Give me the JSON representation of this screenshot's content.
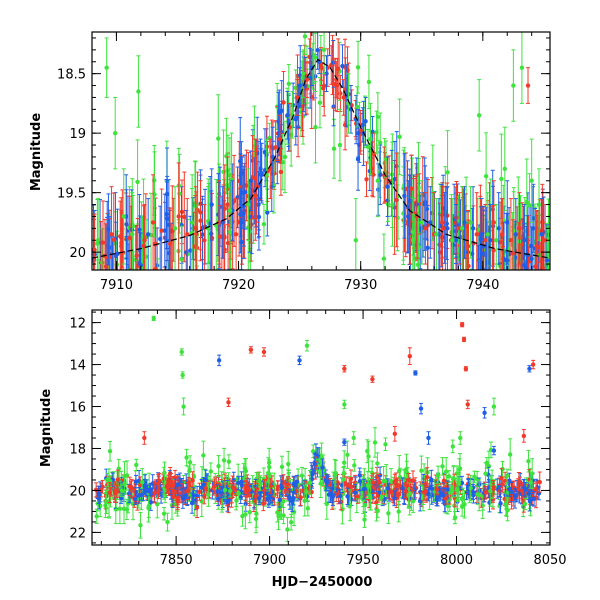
{
  "chart_data": [
    {
      "type": "scatter",
      "xlim": [
        7908,
        7945.5
      ],
      "ylim": [
        20.15,
        18.15
      ],
      "y_inverted": true,
      "xlabel": "",
      "ylabel": "Magnitude",
      "xticks": [
        7910,
        7920,
        7930,
        7940
      ],
      "yticks": [
        18.5,
        19,
        19.5,
        20
      ],
      "ytick_labels": [
        "18.5",
        "19",
        "19.5",
        "20"
      ],
      "grid": false,
      "colors": {
        "red": "#f23a2a",
        "blue": "#1f5fe8",
        "green": "#3ee33e",
        "model": "#000000"
      },
      "model_curve": {
        "x": [
          7908,
          7912,
          7916,
          7919,
          7921,
          7923,
          7924.5,
          7925.5,
          7926.5,
          7927.5,
          7928.5,
          7930,
          7932,
          7934,
          7937,
          7941,
          7945.5
        ],
        "y": [
          20.05,
          19.97,
          19.86,
          19.72,
          19.55,
          19.2,
          18.85,
          18.55,
          18.38,
          18.45,
          18.62,
          18.95,
          19.35,
          19.65,
          19.85,
          19.97,
          20.05
        ]
      },
      "series": [
        {
          "color": "red",
          "x": [
            7908.2,
            7908.9,
            7909.6,
            7910.4,
            7911.1,
            7912.3,
            7913.0,
            7913.7,
            7914.4,
            7915.1,
            7915.8,
            7916.5,
            7917.2,
            7918.4,
            7919.1,
            7919.8,
            7921.5,
            7922.6,
            7923.4,
            7924.2,
            7924.8,
            7925.6,
            7926.8,
            7928.0,
            7928.6,
            7934.6,
            7935.3,
            7936.0,
            7936.7,
            7937.4,
            7938.1,
            7938.8,
            7939.5,
            7940.2,
            7940.9,
            7941.6,
            7942.3,
            7943.0,
            7943.7,
            7944.4,
            7945.1
          ],
          "y": [
            19.98,
            19.92,
            19.85,
            19.95,
            19.88,
            19.9,
            19.75,
            19.82,
            19.93,
            19.7,
            19.85,
            19.8,
            19.9,
            19.75,
            19.6,
            19.85,
            19.45,
            19.3,
            19.05,
            18.95,
            18.7,
            18.55,
            18.45,
            18.55,
            18.7,
            19.7,
            19.8,
            19.85,
            19.75,
            19.9,
            19.8,
            19.95,
            19.85,
            19.9,
            19.75,
            19.85,
            19.9,
            19.8,
            18.6,
            19.95,
            19.9
          ],
          "err": [
            0.3,
            0.35,
            0.4,
            0.3,
            0.35,
            0.3,
            0.4,
            0.35,
            0.3,
            0.45,
            0.3,
            0.35,
            0.3,
            0.35,
            0.4,
            0.3,
            0.3,
            0.25,
            0.2,
            0.2,
            0.15,
            0.15,
            0.15,
            0.15,
            0.15,
            0.35,
            0.3,
            0.35,
            0.3,
            0.35,
            0.3,
            0.3,
            0.35,
            0.3,
            0.35,
            0.3,
            0.35,
            0.3,
            0.15,
            0.3,
            0.3
          ]
        },
        {
          "color": "blue",
          "x": [
            7910.8,
            7912.6,
            7917.8,
            7918.7,
            7919.5,
            7920.3,
            7921.0,
            7921.8,
            7922.8,
            7924.0,
            7925.0,
            7926.0,
            7926.6,
            7927.2,
            7929.2,
            7929.8,
            7930.4,
            7931.6,
            7932.2,
            7933.9,
            7935.0,
            7935.7,
            7936.4,
            7937.1,
            7937.8,
            7938.5,
            7939.2,
            7939.9,
            7940.6,
            7941.3,
            7942.0,
            7942.7,
            7943.4,
            7944.1,
            7944.8
          ],
          "y": [
            19.7,
            19.85,
            19.6,
            19.75,
            19.65,
            19.5,
            19.4,
            19.3,
            19.2,
            18.85,
            18.6,
            18.45,
            18.4,
            18.5,
            18.8,
            19.0,
            18.9,
            19.35,
            19.45,
            19.7,
            19.8,
            19.75,
            19.85,
            19.8,
            19.9,
            19.75,
            19.8,
            19.85,
            19.9,
            19.8,
            19.75,
            19.85,
            19.9,
            19.8,
            19.85
          ],
          "err": [
            0.35,
            0.3,
            0.3,
            0.3,
            0.25,
            0.3,
            0.25,
            0.25,
            0.25,
            0.2,
            0.15,
            0.15,
            0.1,
            0.15,
            0.2,
            0.2,
            0.2,
            0.25,
            0.25,
            0.3,
            0.3,
            0.3,
            0.3,
            0.35,
            0.3,
            0.3,
            0.35,
            0.3,
            0.3,
            0.3,
            0.35,
            0.3,
            0.3,
            0.35,
            0.3
          ]
        },
        {
          "color": "green",
          "x": [
            7908.5,
            7909.2,
            7909.9,
            7910.6,
            7911.3,
            7911.8,
            7914.8,
            7916.2,
            7917.5,
            7919.3,
            7920.8,
            7922.3,
            7923.8,
            7925.3,
            7926.3,
            7927.0,
            7928.3,
            7929.0,
            7929.6,
            7930.8,
            7931.4,
            7932.6,
            7934.3,
            7935.0,
            7936.2,
            7937.5,
            7938.3,
            7939.0,
            7939.7,
            7940.4,
            7941.1,
            7941.8,
            7942.5,
            7943.2,
            7944.0,
            7944.6
          ],
          "y": [
            19.9,
            18.45,
            19.0,
            19.7,
            19.85,
            18.65,
            19.8,
            19.75,
            19.8,
            19.65,
            19.6,
            19.35,
            19.2,
            18.5,
            18.95,
            18.3,
            19.1,
            18.75,
            19.9,
            19.05,
            19.4,
            19.6,
            19.9,
            19.75,
            19.85,
            19.9,
            19.8,
            19.75,
            18.85,
            19.85,
            19.9,
            19.3,
            18.6,
            18.45,
            19.4,
            19.6
          ],
          "err": [
            0.35,
            0.25,
            0.3,
            0.4,
            0.35,
            0.3,
            0.35,
            0.4,
            0.35,
            0.35,
            0.3,
            0.3,
            0.3,
            0.2,
            0.3,
            0.2,
            0.3,
            0.25,
            0.35,
            0.3,
            0.3,
            0.35,
            0.35,
            0.35,
            0.3,
            0.35,
            0.35,
            0.3,
            0.3,
            0.35,
            0.3,
            0.35,
            0.3,
            0.3,
            0.35,
            0.3
          ]
        }
      ]
    },
    {
      "type": "scatter",
      "xlim": [
        7805,
        8050
      ],
      "ylim": [
        22.6,
        11.4
      ],
      "y_inverted": true,
      "xlabel": "HJD−2450000",
      "ylabel": "Magnitude",
      "xticks": [
        7850,
        7900,
        7950,
        8000,
        8050
      ],
      "yticks": [
        12,
        14,
        16,
        18,
        20,
        22
      ],
      "grid": false,
      "baseline_magnitude": 20,
      "series": [
        {
          "color": "red",
          "x": [
            7833,
            7878,
            7890,
            7897,
            7940,
            7955,
            7967,
            7975,
            8003,
            8004,
            8005,
            8006,
            8036,
            8041
          ],
          "y": [
            17.5,
            15.8,
            13.3,
            13.4,
            14.2,
            14.7,
            17.3,
            13.6,
            12.1,
            12.8,
            14.2,
            15.9,
            17.4,
            14.0
          ],
          "err": [
            0.3,
            0.2,
            0.15,
            0.2,
            0.15,
            0.15,
            0.35,
            0.4,
            0.1,
            0.1,
            0.1,
            0.2,
            0.3,
            0.2
          ]
        },
        {
          "color": "green",
          "x": [
            7838,
            7853,
            7853.5,
            7854,
            7920,
            7940,
            7945,
            7962,
            7998,
            8002,
            8020
          ],
          "y": [
            11.8,
            13.4,
            14.5,
            16.0,
            13.1,
            15.9,
            17.5,
            17.8,
            17.9,
            17.5,
            16.0
          ],
          "err": [
            0.1,
            0.15,
            0.15,
            0.4,
            0.25,
            0.2,
            0.3,
            0.3,
            0.3,
            0.3,
            0.4
          ]
        },
        {
          "color": "blue",
          "x": [
            7873,
            7916,
            7940,
            7978,
            7981,
            7985,
            8015,
            8020,
            8039
          ],
          "y": [
            13.8,
            13.8,
            17.7,
            14.4,
            16.1,
            17.5,
            16.3,
            18.1,
            14.2
          ],
          "err": [
            0.25,
            0.2,
            0.15,
            0.1,
            0.25,
            0.3,
            0.25,
            0.2,
            0.15
          ]
        }
      ]
    }
  ]
}
